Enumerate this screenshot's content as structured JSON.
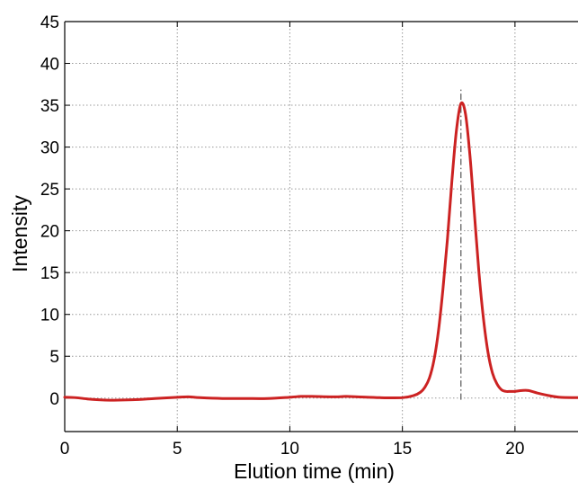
{
  "chart_data": {
    "type": "line",
    "title": "",
    "xlabel": "Elution time (min)",
    "ylabel": "Intensity",
    "xlim": [
      0,
      22.8
    ],
    "ylim": [
      -4,
      45
    ],
    "xticks": [
      0,
      5,
      10,
      15,
      20
    ],
    "yticks": [
      0,
      5,
      10,
      15,
      20,
      25,
      30,
      35,
      40,
      45
    ],
    "grid": true,
    "legend": "none",
    "colors": {
      "series": "#cc2222",
      "marker_line": "#555555",
      "grid": "#999999",
      "axis": "#000000"
    },
    "peak_marker": {
      "x": 17.6,
      "y_range": [
        -0.2,
        37
      ]
    },
    "series": [
      {
        "x": [
          0,
          0.5,
          1,
          1.5,
          2,
          3,
          4,
          5,
          5.5,
          6,
          7,
          8,
          9,
          10,
          10.5,
          11,
          12,
          12.5,
          13,
          14,
          15,
          15.5,
          15.8,
          16,
          16.2,
          16.4,
          16.6,
          16.8,
          17,
          17.2,
          17.4,
          17.6,
          17.8,
          18,
          18.2,
          18.4,
          18.6,
          18.8,
          19,
          19.2,
          19.4,
          19.6,
          19.8,
          20,
          20.3,
          20.6,
          21,
          21.5,
          22,
          22.8
        ],
        "y": [
          0.1,
          0.05,
          -0.1,
          -0.2,
          -0.25,
          -0.2,
          -0.05,
          0.1,
          0.15,
          0.05,
          -0.05,
          -0.05,
          -0.05,
          0.1,
          0.2,
          0.2,
          0.15,
          0.2,
          0.15,
          0.05,
          0.05,
          0.3,
          0.7,
          1.3,
          2.4,
          4.5,
          8,
          13,
          19,
          26,
          32,
          35.2,
          34,
          29,
          22,
          15,
          9.5,
          5.5,
          3,
          1.7,
          1.0,
          0.8,
          0.8,
          0.8,
          0.9,
          0.9,
          0.6,
          0.3,
          0.1,
          0.05
        ]
      }
    ]
  }
}
